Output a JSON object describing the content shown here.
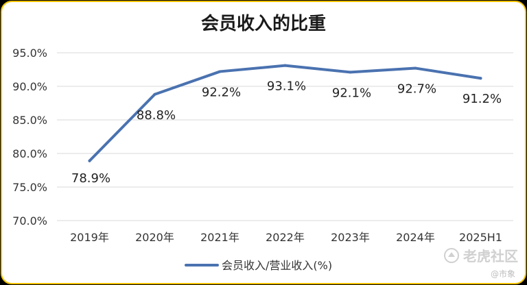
{
  "chart_data": {
    "type": "line",
    "title": "会员收入的比重",
    "categories": [
      "2019年",
      "2020年",
      "2021年",
      "2022年",
      "2023年",
      "2024年",
      "2025H1"
    ],
    "series": [
      {
        "name": "会员收入/营业收入(%)",
        "values": [
          78.9,
          88.8,
          92.2,
          93.1,
          92.1,
          92.7,
          91.2
        ],
        "labels": [
          "78.9%",
          "88.8%",
          "92.2%",
          "93.1%",
          "92.1%",
          "92.7%",
          "91.2%"
        ],
        "color": "#4a72b0"
      }
    ],
    "ylim": [
      70,
      95
    ],
    "yticks": [
      70,
      75,
      80,
      85,
      90,
      95
    ],
    "ytick_labels": [
      "70.0%",
      "75.0%",
      "80.0%",
      "85.0%",
      "90.0%",
      "95.0%"
    ],
    "xlabel": "",
    "ylabel": "",
    "grid": true,
    "legend_position": "bottom"
  },
  "colors": {
    "frame_border": "#f2c200",
    "line": "#4a72b0",
    "grid": "#d9d9d9"
  },
  "watermark": {
    "icon": "tiger-logo-icon",
    "brand": "老虎社区",
    "sub": "@市象"
  }
}
